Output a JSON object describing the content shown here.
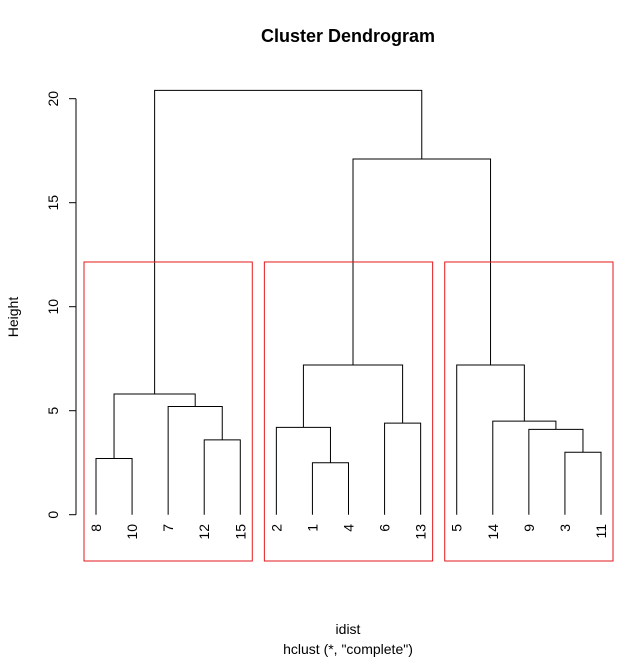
{
  "chart_data": {
    "type": "dendrogram",
    "title": "Cluster Dendrogram",
    "ylabel": "Height",
    "xlabel": "idist",
    "subtitle": "hclust (*, \"complete\")",
    "ylim": [
      0,
      20
    ],
    "yticks": [
      0,
      5,
      10,
      15,
      20
    ],
    "leaf_order": [
      "8",
      "10",
      "7",
      "12",
      "15",
      "2",
      "1",
      "4",
      "6",
      "13",
      "5",
      "14",
      "9",
      "3",
      "11"
    ],
    "merges": [
      {
        "id": "m1",
        "left": "8",
        "right": "10",
        "height": 2.7
      },
      {
        "id": "m2",
        "left": "12",
        "right": "15",
        "height": 3.6
      },
      {
        "id": "m3",
        "left": "1",
        "right": "4",
        "height": 2.5
      },
      {
        "id": "m4",
        "left": "3",
        "right": "11",
        "height": 3.0
      },
      {
        "id": "m5",
        "left": "9",
        "right": "m4",
        "height": 4.1
      },
      {
        "id": "m6",
        "left": "2",
        "right": "m3",
        "height": 4.2
      },
      {
        "id": "m7",
        "left": "6",
        "right": "13",
        "height": 4.4
      },
      {
        "id": "m8",
        "left": "14",
        "right": "m5",
        "height": 4.5
      },
      {
        "id": "m9",
        "left": "7",
        "right": "m2",
        "height": 5.2
      },
      {
        "id": "m10",
        "left": "m1",
        "right": "m9",
        "height": 5.8
      },
      {
        "id": "m11",
        "left": "m6",
        "right": "m7",
        "height": 7.2
      },
      {
        "id": "m12",
        "left": "5",
        "right": "m8",
        "height": 7.2
      },
      {
        "id": "m13",
        "left": "m11",
        "right": "m12",
        "height": 17.1
      },
      {
        "id": "m14",
        "left": "m10",
        "right": "m13",
        "height": 20.4
      }
    ],
    "cut": {
      "k": 3,
      "color": "#e31a1c",
      "groups": [
        [
          "8",
          "10",
          "7",
          "12",
          "15"
        ],
        [
          "2",
          "1",
          "4",
          "6",
          "13"
        ],
        [
          "5",
          "14",
          "9",
          "3",
          "11"
        ]
      ]
    },
    "colors": {
      "branch": "#000000",
      "rect": "#e31a1c"
    }
  }
}
